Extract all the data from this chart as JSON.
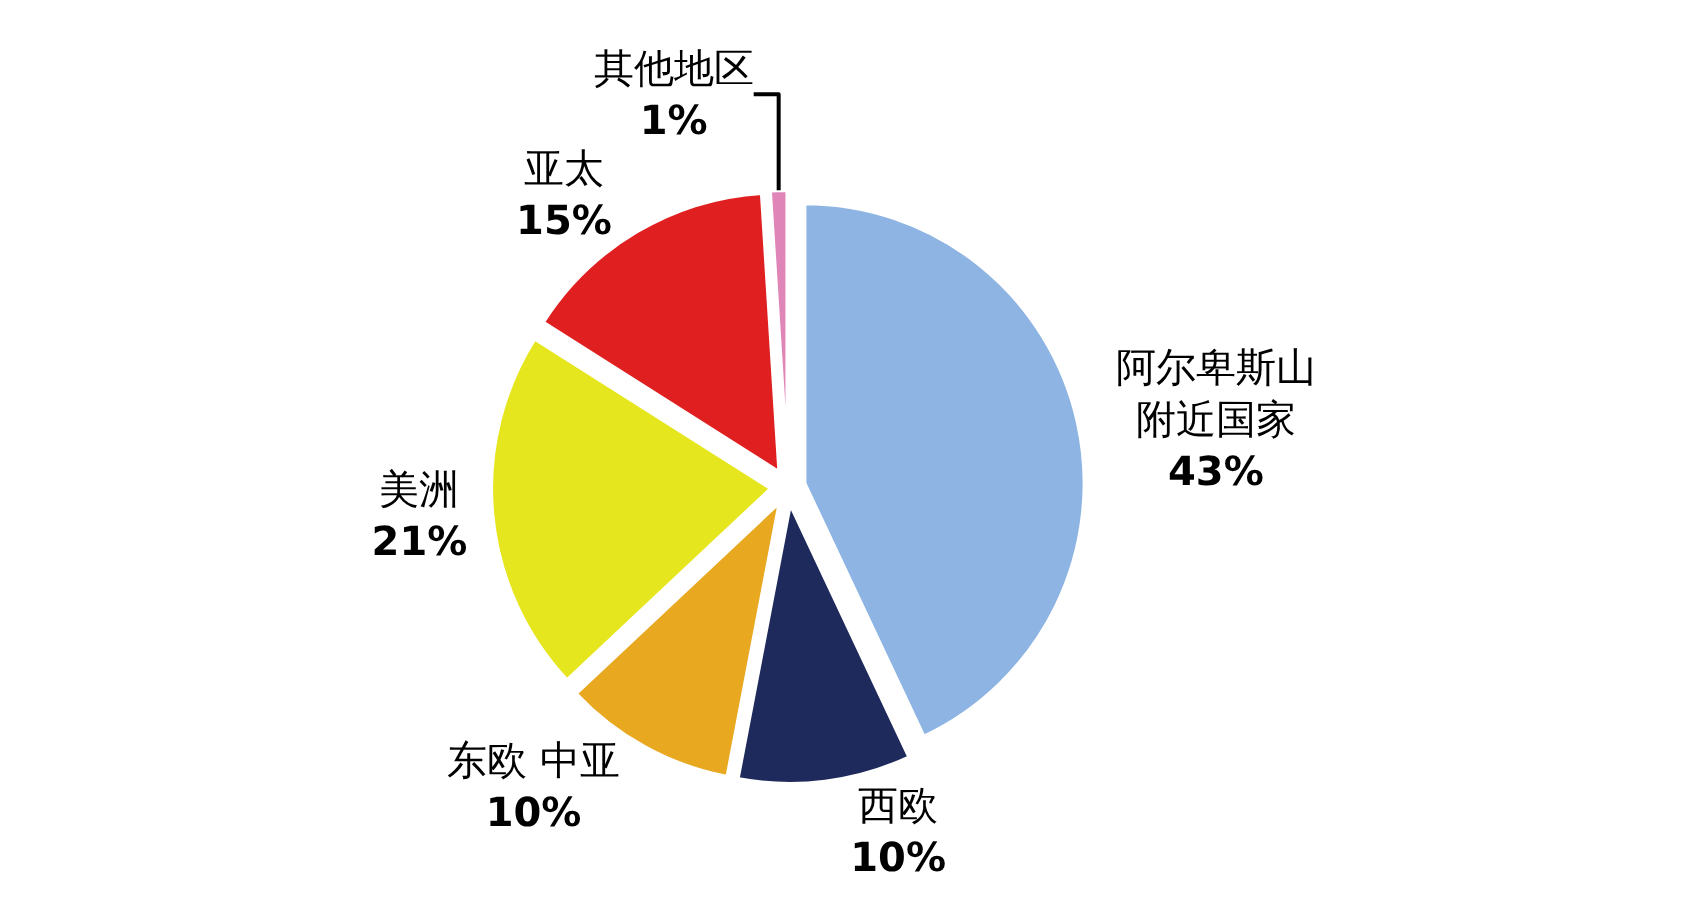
{
  "chart_data": {
    "type": "pie",
    "categories": [
      "阿尔卑斯山附近国家",
      "西欧",
      "东欧 中亚",
      "美洲",
      "亚太",
      "其他地区"
    ],
    "values": [
      43,
      10,
      10,
      21,
      15,
      1
    ],
    "value_labels": [
      "43%",
      "10%",
      "10%",
      "21%",
      "15%",
      "1%"
    ],
    "colors": [
      "#8db4e2",
      "#1f2a5c",
      "#e8a820",
      "#e6e61e",
      "#e02020",
      "#e085b8"
    ],
    "legend": false
  }
}
